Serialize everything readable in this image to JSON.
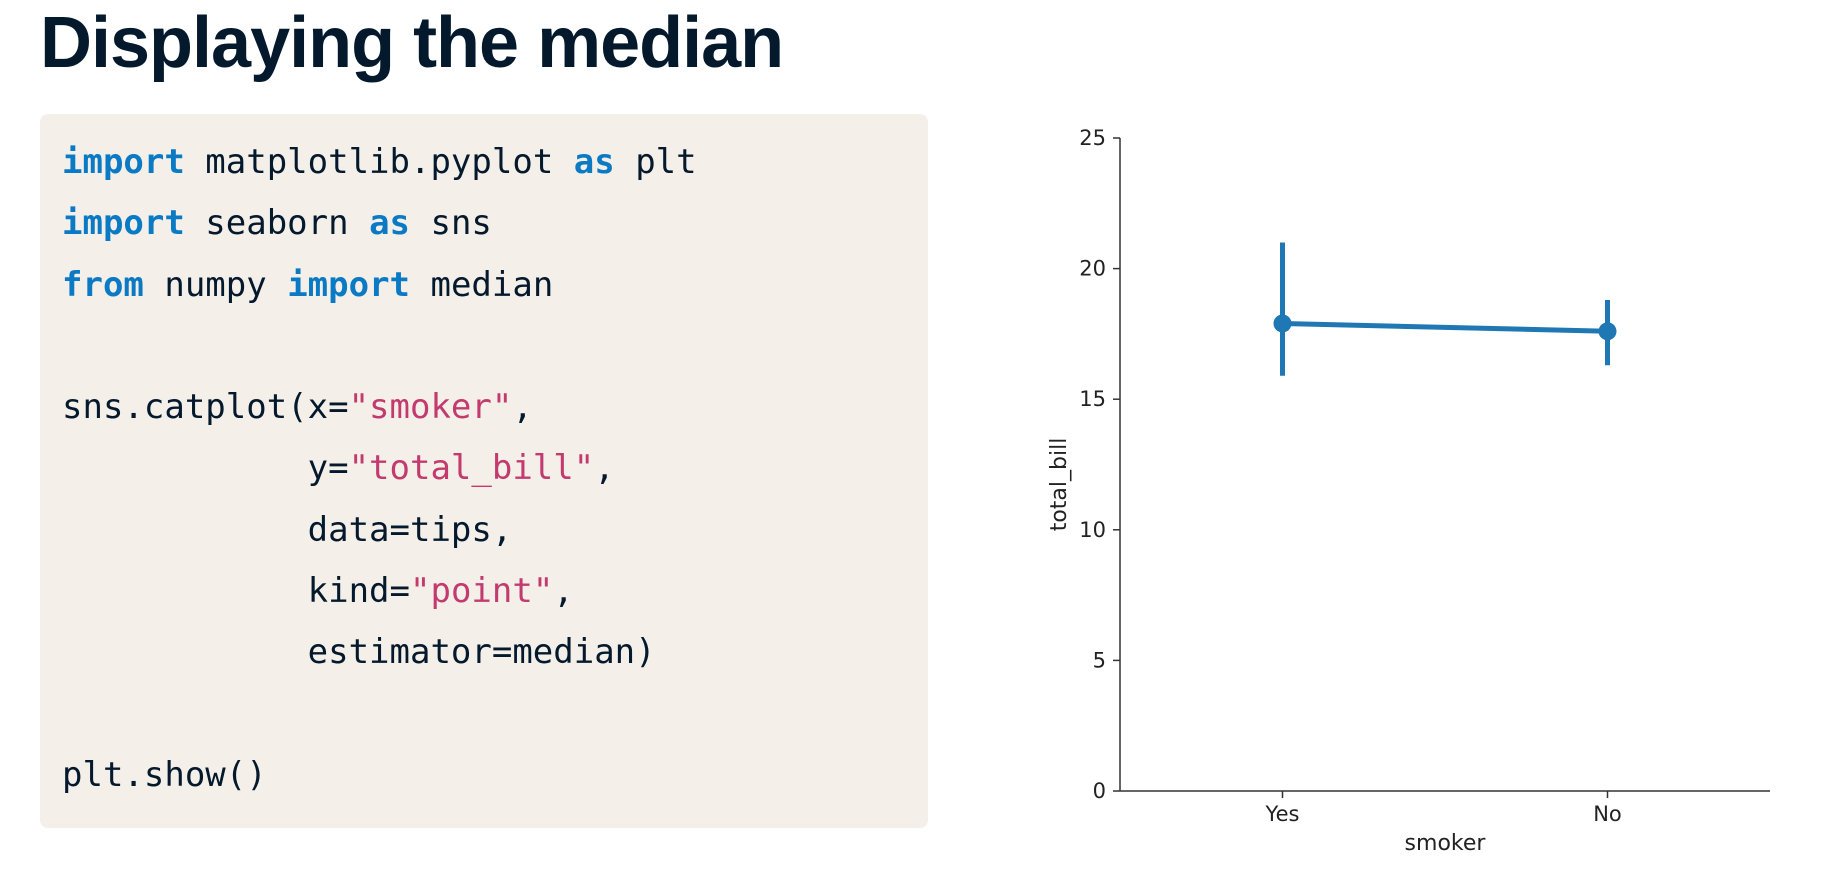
{
  "slide": {
    "title": "Displaying the median"
  },
  "code": {
    "lines": [
      [
        {
          "t": "import",
          "c": "kw"
        },
        {
          "t": " matplotlib.pyplot ",
          "c": "plain"
        },
        {
          "t": "as",
          "c": "kw"
        },
        {
          "t": " plt",
          "c": "plain"
        }
      ],
      [
        {
          "t": "import",
          "c": "kw"
        },
        {
          "t": " seaborn ",
          "c": "plain"
        },
        {
          "t": "as",
          "c": "kw"
        },
        {
          "t": " sns",
          "c": "plain"
        }
      ],
      [
        {
          "t": "from",
          "c": "kw"
        },
        {
          "t": " numpy ",
          "c": "plain"
        },
        {
          "t": "import",
          "c": "kw"
        },
        {
          "t": " median",
          "c": "plain"
        }
      ],
      [],
      [
        {
          "t": "sns.catplot(x=",
          "c": "plain"
        },
        {
          "t": "\"smoker\"",
          "c": "str"
        },
        {
          "t": ",",
          "c": "plain"
        }
      ],
      [
        {
          "t": "            y=",
          "c": "plain"
        },
        {
          "t": "\"total_bill\"",
          "c": "str"
        },
        {
          "t": ",",
          "c": "plain"
        }
      ],
      [
        {
          "t": "            data=tips,",
          "c": "plain"
        }
      ],
      [
        {
          "t": "            kind=",
          "c": "plain"
        },
        {
          "t": "\"point\"",
          "c": "str"
        },
        {
          "t": ",",
          "c": "plain"
        }
      ],
      [
        {
          "t": "            estimator=median)",
          "c": "plain"
        }
      ],
      [],
      [
        {
          "t": "plt.show()",
          "c": "plain"
        }
      ]
    ]
  },
  "colors": {
    "keyword": "#0a7ac4",
    "string": "#c23a6e",
    "text": "#05192d",
    "code_bg": "#f4f0e9",
    "series": "#1f77b4"
  },
  "chart_data": {
    "type": "point",
    "categories": [
      "Yes",
      "No"
    ],
    "values": [
      17.9,
      17.6
    ],
    "ci": [
      [
        15.9,
        21.0
      ],
      [
        16.3,
        18.8
      ]
    ],
    "xlabel": "smoker",
    "ylabel": "total_bill",
    "ylim": [
      0,
      25
    ],
    "yticks": [
      0,
      5,
      10,
      15,
      20,
      25
    ],
    "grid": false,
    "legend": false
  }
}
